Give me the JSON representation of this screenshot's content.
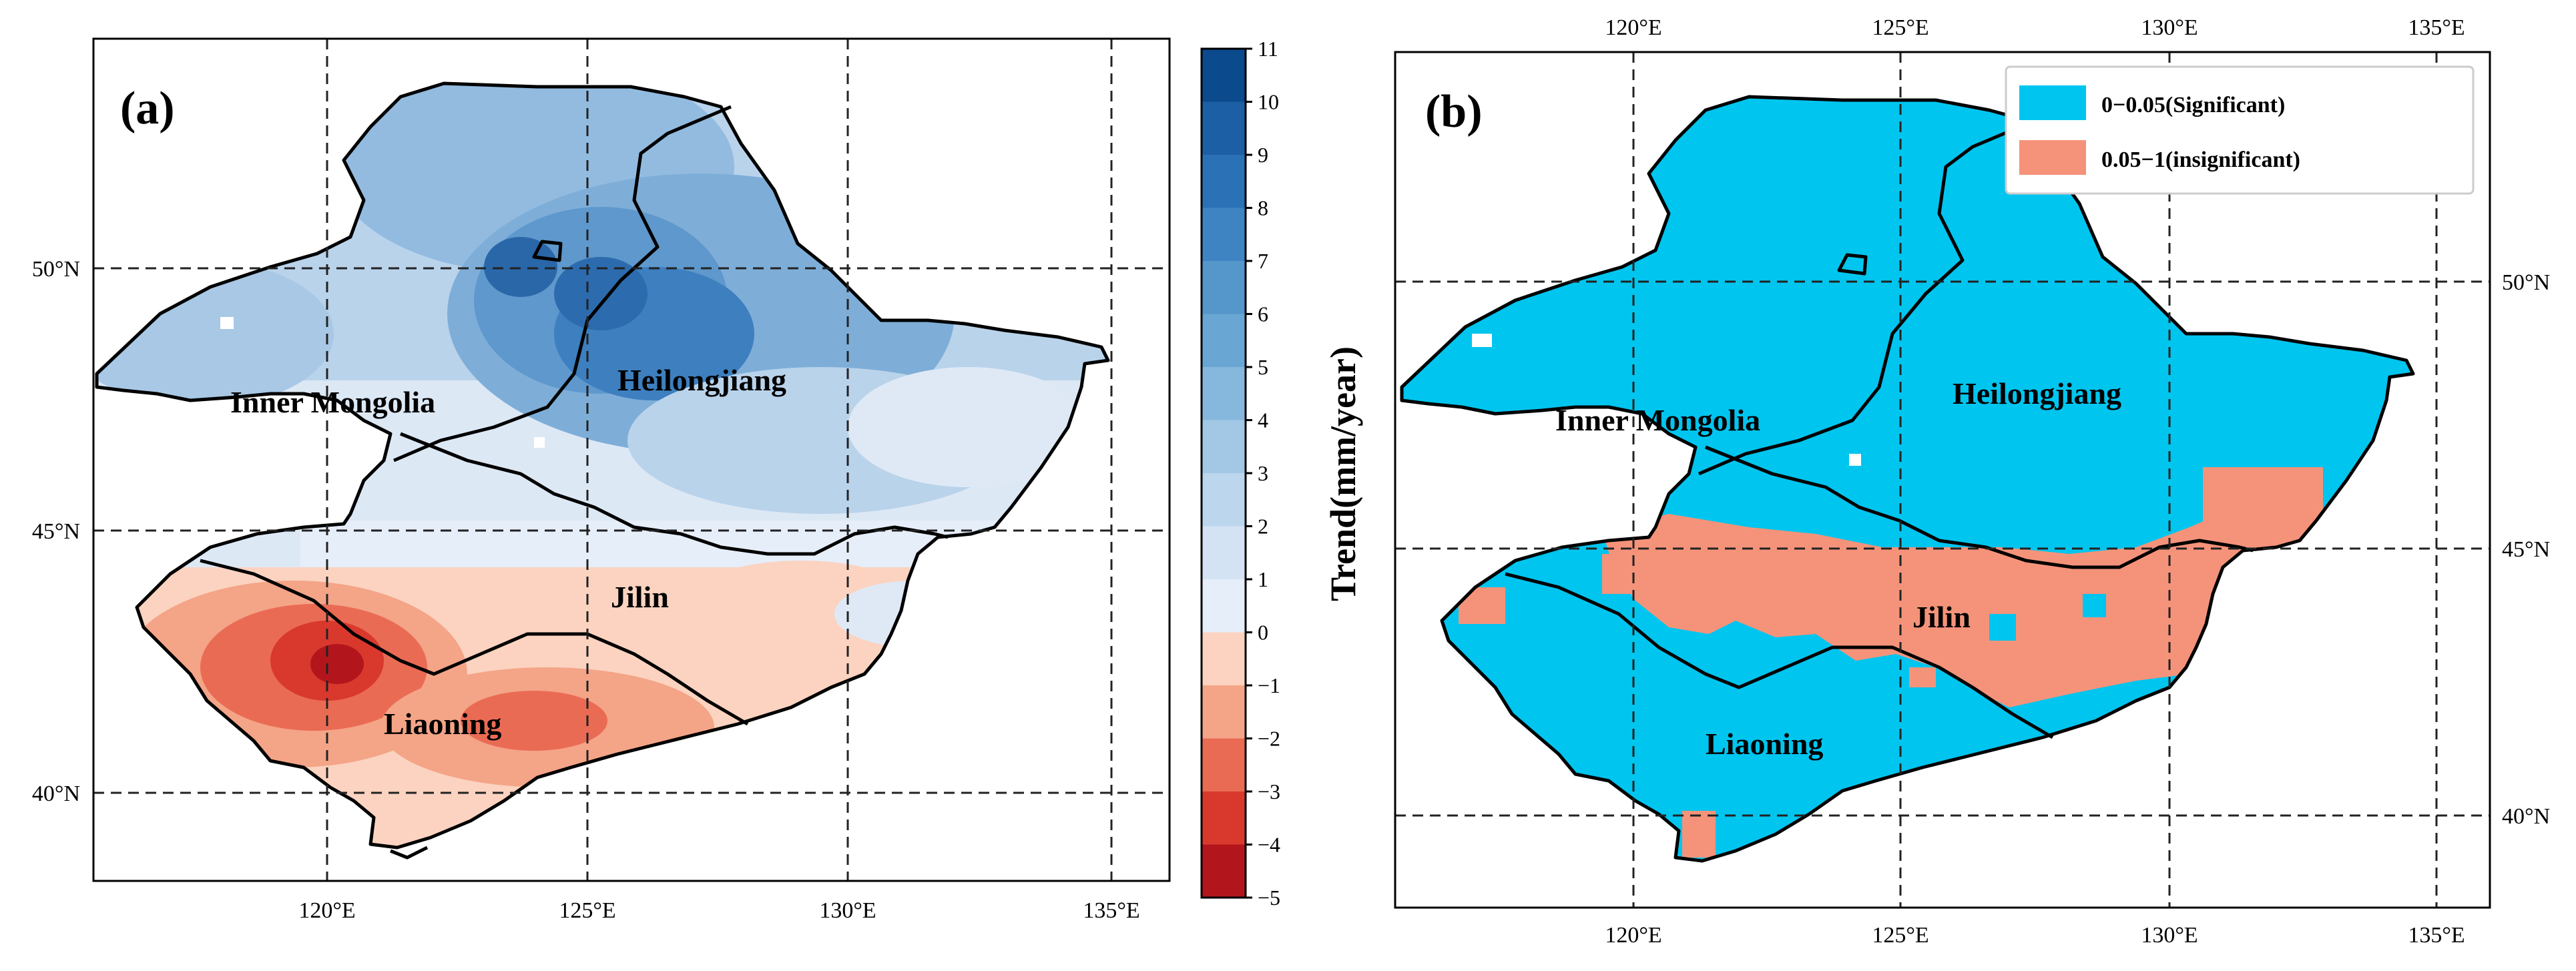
{
  "panel_a": {
    "label": "(a)",
    "lon_ticks": [
      "120°E",
      "125°E",
      "130°E",
      "135°E"
    ],
    "lat_ticks": [
      "50°N",
      "45°N",
      "40°N"
    ],
    "provinces": [
      "Inner Mongolia",
      "Heilongjiang",
      "Jilin",
      "Liaoning"
    ]
  },
  "panel_b": {
    "label": "(b)",
    "lon_ticks": [
      "120°E",
      "125°E",
      "130°E",
      "135°E"
    ],
    "lat_ticks": [
      "50°N",
      "45°N",
      "40°N"
    ],
    "provinces": [
      "Inner Mongolia",
      "Heilongjiang",
      "Jilin",
      "Liaoning"
    ]
  },
  "colorbar": {
    "label": "Trend(mm/year)",
    "ticks": [
      "11",
      "10",
      "9",
      "8",
      "7",
      "6",
      "5",
      "4",
      "3",
      "2",
      "1",
      "0",
      "−1",
      "−2",
      "−3",
      "−4",
      "−5"
    ],
    "colors": [
      "#0b4a8c",
      "#1c5fa4",
      "#2b71b5",
      "#3e83c2",
      "#5596cb",
      "#6aa6d3",
      "#86b8dd",
      "#a2c8e5",
      "#bcd6ed",
      "#d3e3f3",
      "#e6eef9",
      "#fbd3c0",
      "#f4a487",
      "#ea6b54",
      "#d9382d",
      "#b2161c"
    ]
  },
  "legend": {
    "items": [
      {
        "label": "0−0.05(Significant)",
        "color": "#00c5ef"
      },
      {
        "label": "0.05−1(insignificant)",
        "color": "#f4937a"
      }
    ]
  },
  "map_colors": {
    "significant": "#00c5ef",
    "insignificant": "#f4937a"
  }
}
